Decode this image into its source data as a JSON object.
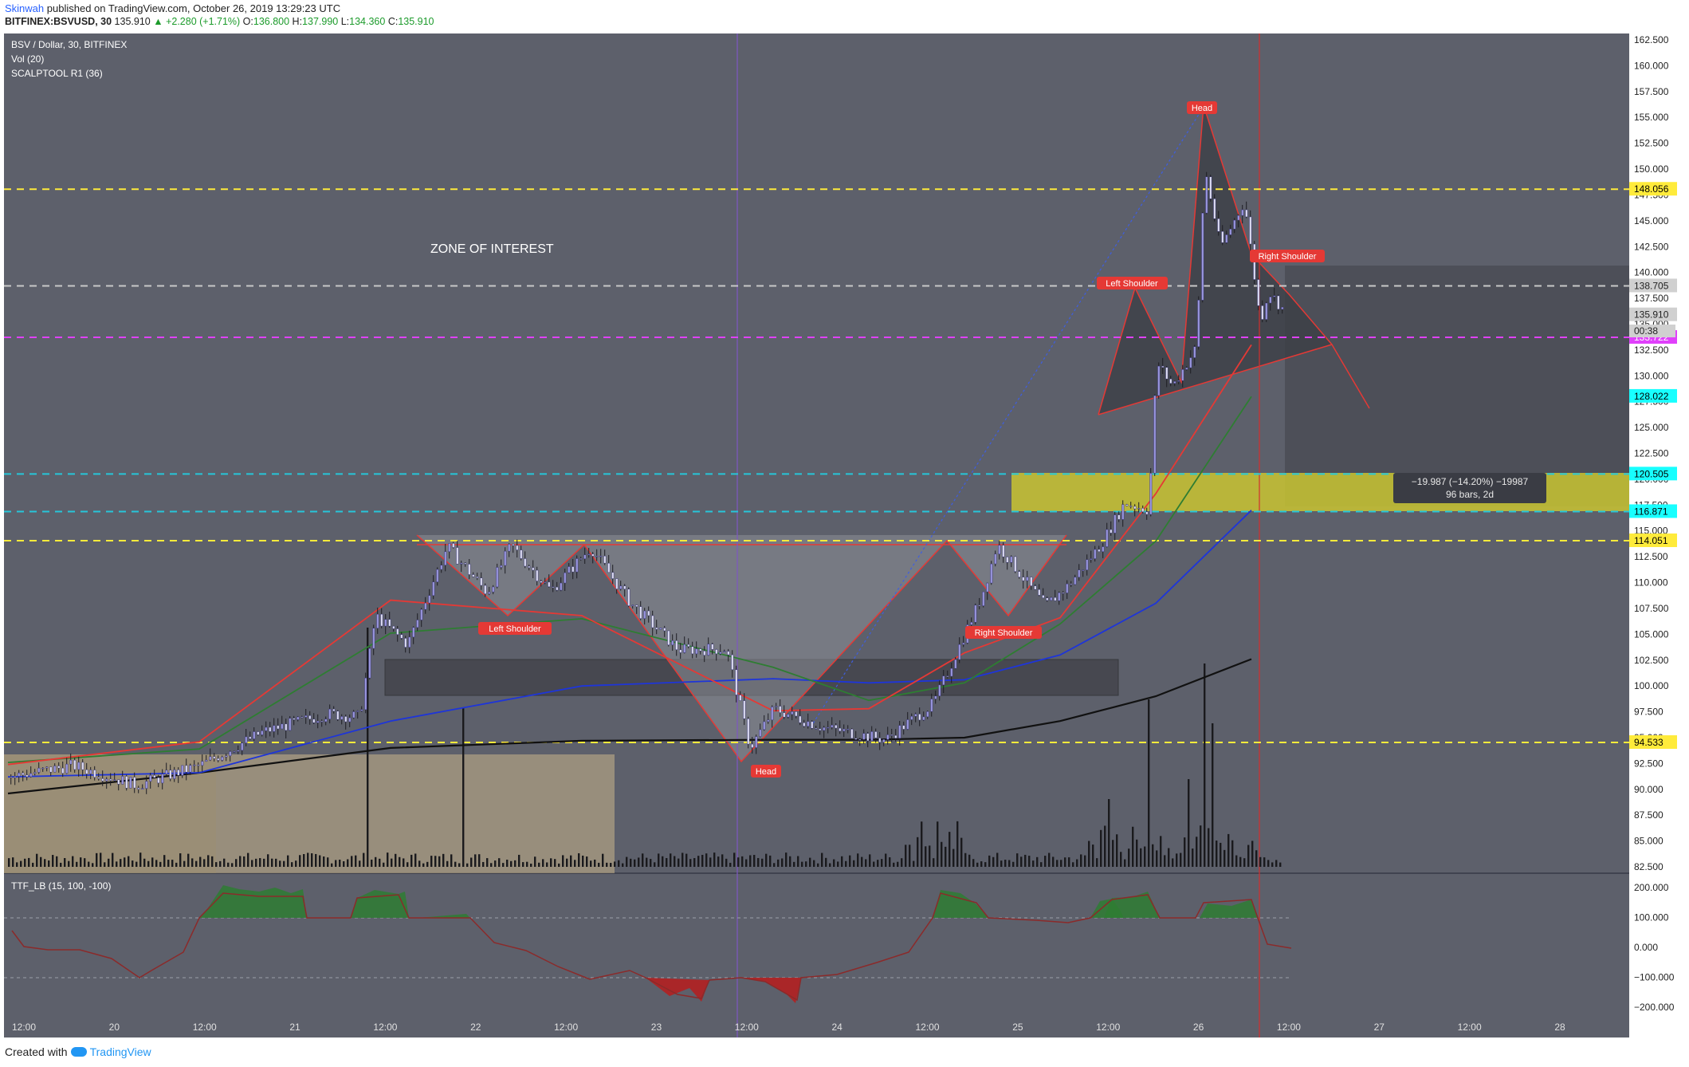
{
  "header": {
    "author": "Skinwah",
    "published_text": "published on TradingView.com, October 26, 2019 13:29:23 UTC",
    "symbol": "BITFINEX:BSVUSD, 30",
    "last": "135.910",
    "change": "▲ +2.280 (+1.71%)",
    "o_label": "O:",
    "o": "136.800",
    "h_label": "H:",
    "h": "137.990",
    "l_label": "L:",
    "l": "134.360",
    "c_label": "C:",
    "c": "135.910"
  },
  "chart": {
    "legend": [
      "BSV / Dollar, 30, BITFINEX",
      "Vol (20)",
      "SCALPTOOL R1 (36)"
    ],
    "osc_legend": "TTF_LB (15, 100, -100)",
    "zone_label": "ZONE OF INTEREST",
    "measure_line1": "−19.987 (−14.20%) −19987",
    "measure_line2": "96 bars, 2d",
    "countdown": "00:38",
    "pattern_labels": {
      "head_top": "Head",
      "left_shoulder_top": "Left Shoulder",
      "right_shoulder_top": "Right Shoulder",
      "left_shoulder_inv": "Left Shoulder",
      "head_inv": "Head",
      "right_shoulder_inv": "Right Shoulder"
    },
    "colors": {
      "background": "#5d606b",
      "axis_bg": "#ffffff",
      "candle": "#9b97e0",
      "yellow_lines": "#ffeb3b",
      "magenta_line": "#e040fb",
      "cyan_lines": "#26c6da",
      "ma_red": "#e53935",
      "ma_green": "#2e7d32",
      "ma_blue": "#1e35d9",
      "ma_black": "#111111",
      "label_red": "#e53935"
    }
  },
  "chart_data": {
    "type": "line",
    "title": "BSV / Dollar, 30, BITFINEX",
    "x_tick_labels": [
      "12:00",
      "20",
      "12:00",
      "21",
      "12:00",
      "22",
      "12:00",
      "23",
      "12:00",
      "24",
      "12:00",
      "25",
      "12:00",
      "26",
      "12:00",
      "27",
      "12:00",
      "28"
    ],
    "y_tick_labels": [
      "162.500",
      "160.000",
      "157.500",
      "155.000",
      "152.500",
      "150.000",
      "147.500",
      "145.000",
      "142.500",
      "140.000",
      "137.500",
      "135.000",
      "132.500",
      "130.000",
      "127.500",
      "125.000",
      "122.500",
      "120.000",
      "117.500",
      "115.000",
      "112.500",
      "110.000",
      "107.500",
      "105.000",
      "102.500",
      "100.000",
      "97.500",
      "95.000",
      "92.500",
      "90.000",
      "87.500",
      "85.000",
      "82.500"
    ],
    "ylim": [
      82.5,
      162.5
    ],
    "price_labels": [
      {
        "value": "148.056",
        "kind": "yellow"
      },
      {
        "value": "138.705",
        "kind": "gray"
      },
      {
        "value": "135.910",
        "kind": "gray"
      },
      {
        "value": "133.722",
        "kind": "magenta"
      },
      {
        "value": "128.022",
        "kind": "cyan"
      },
      {
        "value": "120.505",
        "kind": "cyan"
      },
      {
        "value": "116.871",
        "kind": "cyan"
      },
      {
        "value": "114.051",
        "kind": "yellow"
      },
      {
        "value": "94.533",
        "kind": "yellow"
      }
    ],
    "horizontal_levels": [
      {
        "price": 148.056,
        "color": "#ffeb3b"
      },
      {
        "price": 138.705,
        "color": "#c8c8c8"
      },
      {
        "price": 133.722,
        "color": "#e040fb"
      },
      {
        "price": 120.505,
        "color": "#26c6da"
      },
      {
        "price": 116.871,
        "color": "#26c6da"
      },
      {
        "price": 114.051,
        "color": "#ffeb3b"
      },
      {
        "price": 94.533,
        "color": "#ffeb3b"
      }
    ],
    "price_path": [
      {
        "t": 0,
        "p": 91.2
      },
      {
        "t": 8,
        "p": 92.3
      },
      {
        "t": 16,
        "p": 90.4
      },
      {
        "t": 24,
        "p": 92.3
      },
      {
        "t": 32,
        "p": 95.6
      },
      {
        "t": 40,
        "p": 97.3
      },
      {
        "t": 44,
        "p": 97.0
      },
      {
        "t": 46,
        "p": 106.8
      },
      {
        "t": 50,
        "p": 104.0
      },
      {
        "t": 55,
        "p": 113.5
      },
      {
        "t": 60,
        "p": 109.0
      },
      {
        "t": 63,
        "p": 113.6
      },
      {
        "t": 68,
        "p": 109.2
      },
      {
        "t": 73,
        "p": 113.4
      },
      {
        "t": 78,
        "p": 108.0
      },
      {
        "t": 84,
        "p": 103.5
      },
      {
        "t": 90,
        "p": 103.6
      },
      {
        "t": 93,
        "p": 94.0
      },
      {
        "t": 96,
        "p": 97.8
      },
      {
        "t": 102,
        "p": 96.0
      },
      {
        "t": 110,
        "p": 94.8
      },
      {
        "t": 116,
        "p": 98.3
      },
      {
        "t": 122,
        "p": 108.6
      },
      {
        "t": 124,
        "p": 113.7
      },
      {
        "t": 130,
        "p": 107.7
      },
      {
        "t": 133,
        "p": 109.8
      },
      {
        "t": 137,
        "p": 113.7
      },
      {
        "t": 140,
        "p": 117.7
      },
      {
        "t": 143,
        "p": 117.0
      },
      {
        "t": 144,
        "p": 131.3
      },
      {
        "t": 146,
        "p": 129.0
      },
      {
        "t": 149,
        "p": 132.8
      },
      {
        "t": 150,
        "p": 150.2
      },
      {
        "t": 152,
        "p": 142.4
      },
      {
        "t": 155,
        "p": 146.9
      },
      {
        "t": 157,
        "p": 135.2
      },
      {
        "t": 158,
        "p": 138.2
      },
      {
        "t": 160,
        "p": 136.3
      }
    ],
    "moving_averages": [
      {
        "name": "MA black",
        "points": [
          [
            0,
            89.6
          ],
          [
            24,
            91.6
          ],
          [
            48,
            94.0
          ],
          [
            72,
            94.7
          ],
          [
            96,
            94.8
          ],
          [
            108,
            94.8
          ],
          [
            120,
            95.0
          ],
          [
            132,
            96.6
          ],
          [
            144,
            99.0
          ],
          [
            156,
            102.6
          ]
        ]
      },
      {
        "name": "MA blue",
        "points": [
          [
            0,
            91.2
          ],
          [
            24,
            91.6
          ],
          [
            48,
            96.6
          ],
          [
            72,
            100.0
          ],
          [
            96,
            100.7
          ],
          [
            108,
            100.3
          ],
          [
            120,
            100.6
          ],
          [
            132,
            103.0
          ],
          [
            144,
            108.0
          ],
          [
            156,
            117.0
          ]
        ]
      },
      {
        "name": "MA green",
        "points": [
          [
            0,
            92.6
          ],
          [
            24,
            93.9
          ],
          [
            48,
            105.1
          ],
          [
            72,
            106.5
          ],
          [
            96,
            101.8
          ],
          [
            108,
            98.6
          ],
          [
            120,
            100.3
          ],
          [
            132,
            106.0
          ],
          [
            144,
            114.0
          ],
          [
            156,
            128.0
          ]
        ]
      },
      {
        "name": "MA red",
        "points": [
          [
            0,
            92.4
          ],
          [
            24,
            94.6
          ],
          [
            48,
            108.3
          ],
          [
            72,
            106.8
          ],
          [
            96,
            97.6
          ],
          [
            108,
            97.8
          ],
          [
            120,
            103.2
          ],
          [
            132,
            106.6
          ],
          [
            144,
            118.6
          ],
          [
            156,
            133.0
          ]
        ]
      }
    ],
    "oscillator": {
      "name": "TTF_LB (15, 100, -100)",
      "y_tick_labels": [
        "200.000",
        "100.000",
        "0.000",
        "−100.000",
        "−200.000"
      ],
      "ylim": [
        -200,
        200
      ]
    }
  }
}
